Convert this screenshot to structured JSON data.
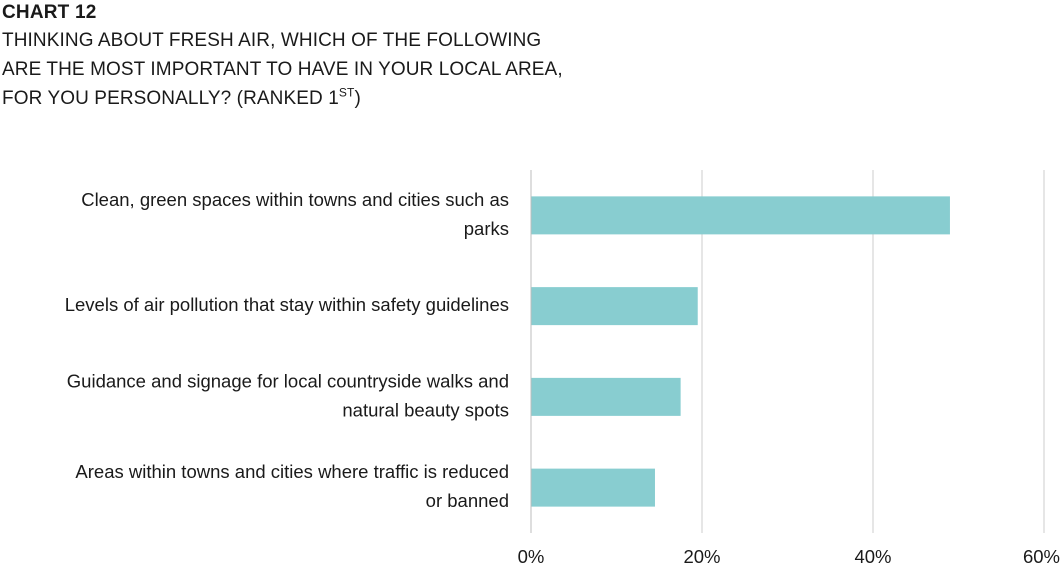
{
  "heading": {
    "number": "CHART 12",
    "title_line1": "THINKING ABOUT FRESH AIR, WHICH OF THE FOLLOWING",
    "title_line2": "ARE THE MOST IMPORTANT TO HAVE IN YOUR LOCAL AREA,",
    "title_line3_main": "FOR YOU PERSONALLY? (RANKED 1",
    "title_line3_sup": "ST",
    "title_line3_end": ")"
  },
  "chart_data": {
    "type": "bar",
    "orientation": "horizontal",
    "categories": [
      [
        "Clean, green spaces within towns and cities such as",
        "parks"
      ],
      [
        "Levels of air pollution that stay within safety guidelines"
      ],
      [
        "Guidance and signage for local countryside walks and",
        "natural beauty spots"
      ],
      [
        "Areas within towns and cities where traffic is reduced",
        "or banned"
      ]
    ],
    "values": [
      49,
      19.5,
      17.5,
      14.5
    ],
    "xlim": [
      0,
      60
    ],
    "ticks": [
      0,
      20,
      40,
      60
    ],
    "tick_labels": [
      "0%",
      "20%",
      "40%",
      "60%"
    ],
    "grid": true,
    "legend": "none",
    "bar_color": "#88cdd0",
    "grid_color": "#cccccc"
  }
}
